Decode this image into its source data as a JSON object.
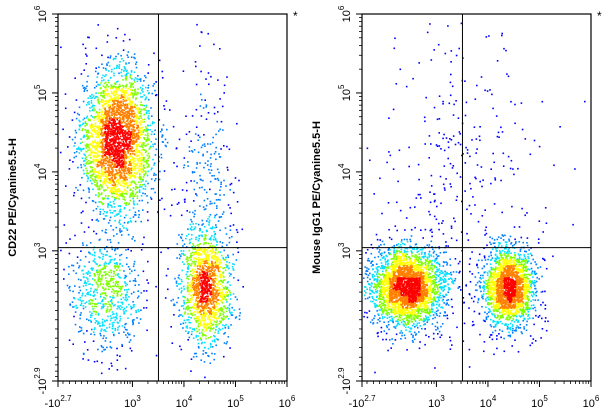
{
  "chart_data": [
    {
      "type": "scatter",
      "title": "",
      "xlabel": "",
      "ylabel": "CD22 PE/Cyanine5.5-H",
      "corner_mark": "*",
      "scale": "biexponential",
      "xlim": [
        -500,
        1000000
      ],
      "ylim": [
        -800,
        1000000
      ],
      "x_ticks": [
        {
          "base": "-10",
          "exp": "2.7"
        },
        {
          "base": "10",
          "exp": "3"
        },
        {
          "base": "10",
          "exp": "4"
        },
        {
          "base": "10",
          "exp": "5"
        },
        {
          "base": "10",
          "exp": "6"
        }
      ],
      "y_ticks": [
        {
          "base": "-10",
          "exp": "2.9"
        },
        {
          "base": "10",
          "exp": "3"
        },
        {
          "base": "10",
          "exp": "4"
        },
        {
          "base": "10",
          "exp": "5"
        },
        {
          "base": "10",
          "exp": "6"
        }
      ],
      "gates": {
        "x": 3200,
        "y": 1100
      },
      "populations": [
        {
          "x": 500,
          "y": 25000,
          "spread_x": 0.35,
          "spread_y": 0.45,
          "weight": 0.55
        },
        {
          "x": 300,
          "y": 300,
          "spread_x": 0.35,
          "spread_y": 0.35,
          "weight": 0.13
        },
        {
          "x": 25000,
          "y": 350,
          "spread_x": 0.25,
          "spread_y": 0.35,
          "weight": 0.27
        },
        {
          "x": 25000,
          "y": 8000,
          "spread_x": 0.25,
          "spread_y": 0.8,
          "weight": 0.05
        }
      ],
      "colors": {
        "low": "#0000ff",
        "mid": "#00e0ff",
        "midhigh": "#ffff00",
        "high": "#ff0000"
      },
      "grid": false,
      "legend": "none"
    },
    {
      "type": "scatter",
      "title": "",
      "xlabel": "",
      "ylabel": "Mouse IgG1 PE/Cyanine5.5-H",
      "corner_mark": "*",
      "scale": "biexponential",
      "xlim": [
        -500,
        1000000
      ],
      "ylim": [
        -800,
        1000000
      ],
      "x_ticks": [
        {
          "base": "-10",
          "exp": "2.7"
        },
        {
          "base": "10",
          "exp": "3"
        },
        {
          "base": "10",
          "exp": "4"
        },
        {
          "base": "10",
          "exp": "5"
        },
        {
          "base": "10",
          "exp": "6"
        }
      ],
      "y_ticks": [
        {
          "base": "-10",
          "exp": "2.9"
        },
        {
          "base": "10",
          "exp": "3"
        },
        {
          "base": "10",
          "exp": "4"
        },
        {
          "base": "10",
          "exp": "5"
        },
        {
          "base": "10",
          "exp": "6"
        }
      ],
      "gates": {
        "x": 3200,
        "y": 1100
      },
      "populations": [
        {
          "x": 250,
          "y": 350,
          "spread_x": 0.35,
          "spread_y": 0.25,
          "weight": 0.55
        },
        {
          "x": 25000,
          "y": 350,
          "spread_x": 0.25,
          "spread_y": 0.25,
          "weight": 0.38
        },
        {
          "x": 3000,
          "y": 5000,
          "spread_x": 0.9,
          "spread_y": 1.0,
          "weight": 0.07
        }
      ],
      "colors": {
        "low": "#0000ff",
        "mid": "#00e0ff",
        "midhigh": "#ffff00",
        "high": "#ff0000"
      },
      "grid": false,
      "legend": "none"
    }
  ]
}
